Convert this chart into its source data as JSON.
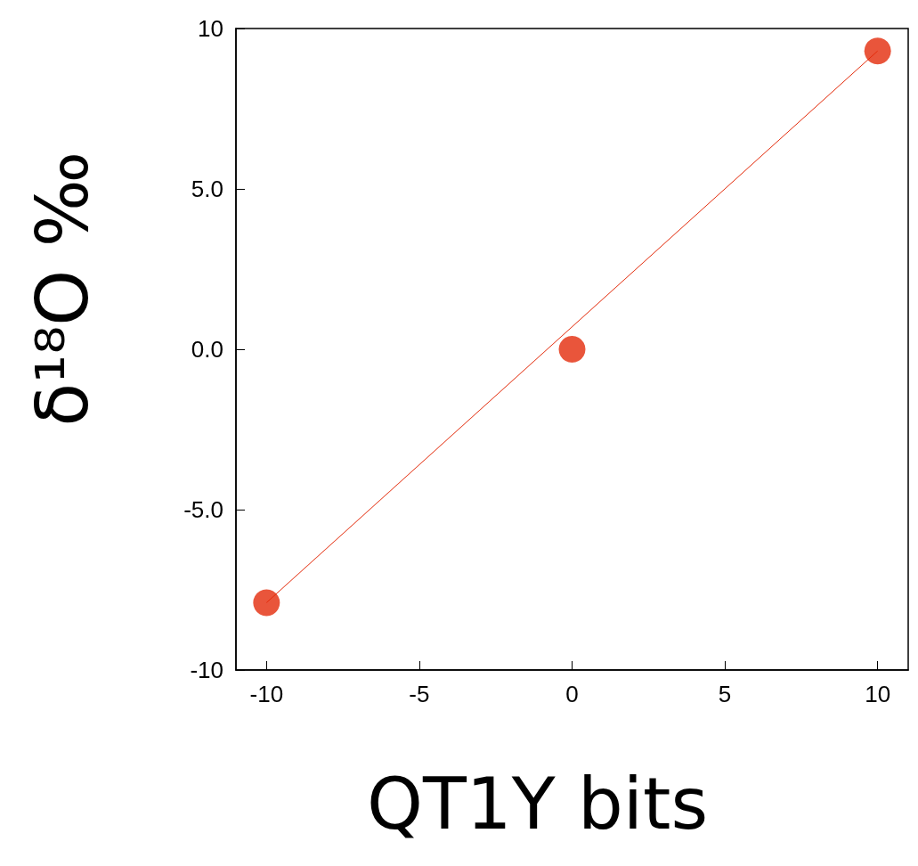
{
  "chart_data": {
    "type": "scatter",
    "xlabel": "QT1Y bits",
    "ylabel": "δ¹⁸O ‰",
    "xlim": [
      -11,
      11
    ],
    "xticks": [
      -10,
      -5,
      0,
      5,
      10
    ],
    "ylim": [
      -10,
      10
    ],
    "yticks": [
      -10,
      {
        "value": -5,
        "label": "-5.0"
      },
      {
        "value": 0,
        "label": "0.0"
      },
      {
        "value": 5,
        "label": "5.0"
      },
      10
    ],
    "grid": false,
    "marker": "circle",
    "series": [
      {
        "color": "#e32a0a",
        "x": [
          -10,
          0,
          10
        ],
        "values": [
          -7.9,
          0,
          9.3
        ]
      },
      {
        "type": "line",
        "color": "#e32a0a",
        "x": [
          -10,
          10
        ],
        "values": [
          -7.9,
          9.3
        ],
        "marker": "none",
        "line_style": "solid"
      }
    ]
  }
}
